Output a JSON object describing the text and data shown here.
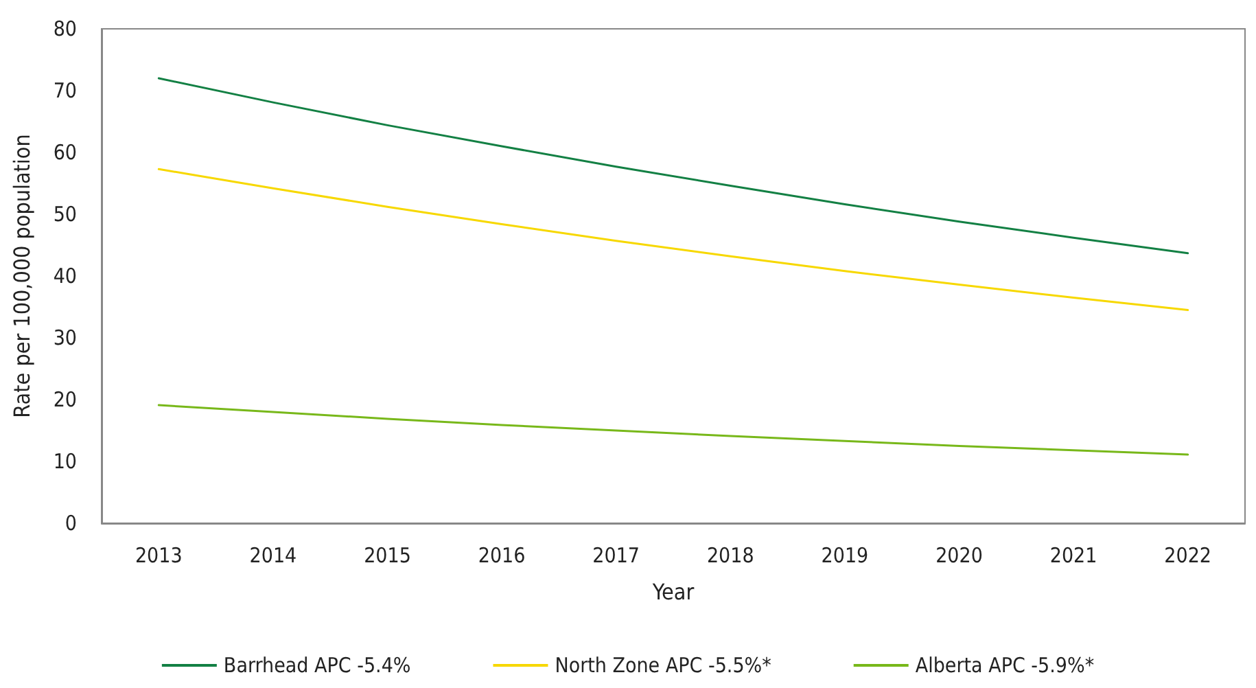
{
  "chart_data": {
    "type": "line",
    "xlabel": "Year",
    "ylabel": "Rate per 100,000 population",
    "categories": [
      "2013",
      "2014",
      "2015",
      "2016",
      "2017",
      "2018",
      "2019",
      "2020",
      "2021",
      "2022"
    ],
    "series": [
      {
        "name": "Barrhead APC -5.4%",
        "color": "#138044",
        "values": [
          72,
          68.1,
          64.4,
          61,
          57.7,
          54.6,
          51.6,
          48.8,
          46.2,
          43.7
        ]
      },
      {
        "name": "North Zone APC -5.5%*",
        "color": "#f7d800",
        "values": [
          57.3,
          54.2,
          51.2,
          48.4,
          45.7,
          43.2,
          40.8,
          38.6,
          36.5,
          34.5
        ]
      },
      {
        "name": "Alberta APC -5.9%*",
        "color": "#78b81a",
        "values": [
          19.1,
          18,
          16.9,
          15.9,
          15,
          14.1,
          13.3,
          12.5,
          11.8,
          11.1
        ]
      }
    ],
    "ylim": [
      0,
      80
    ],
    "yticks": [
      0,
      10,
      20,
      30,
      40,
      50,
      60,
      70,
      80
    ],
    "grid": false,
    "legend": "bottom",
    "marker": "none",
    "line_style": "solid"
  }
}
